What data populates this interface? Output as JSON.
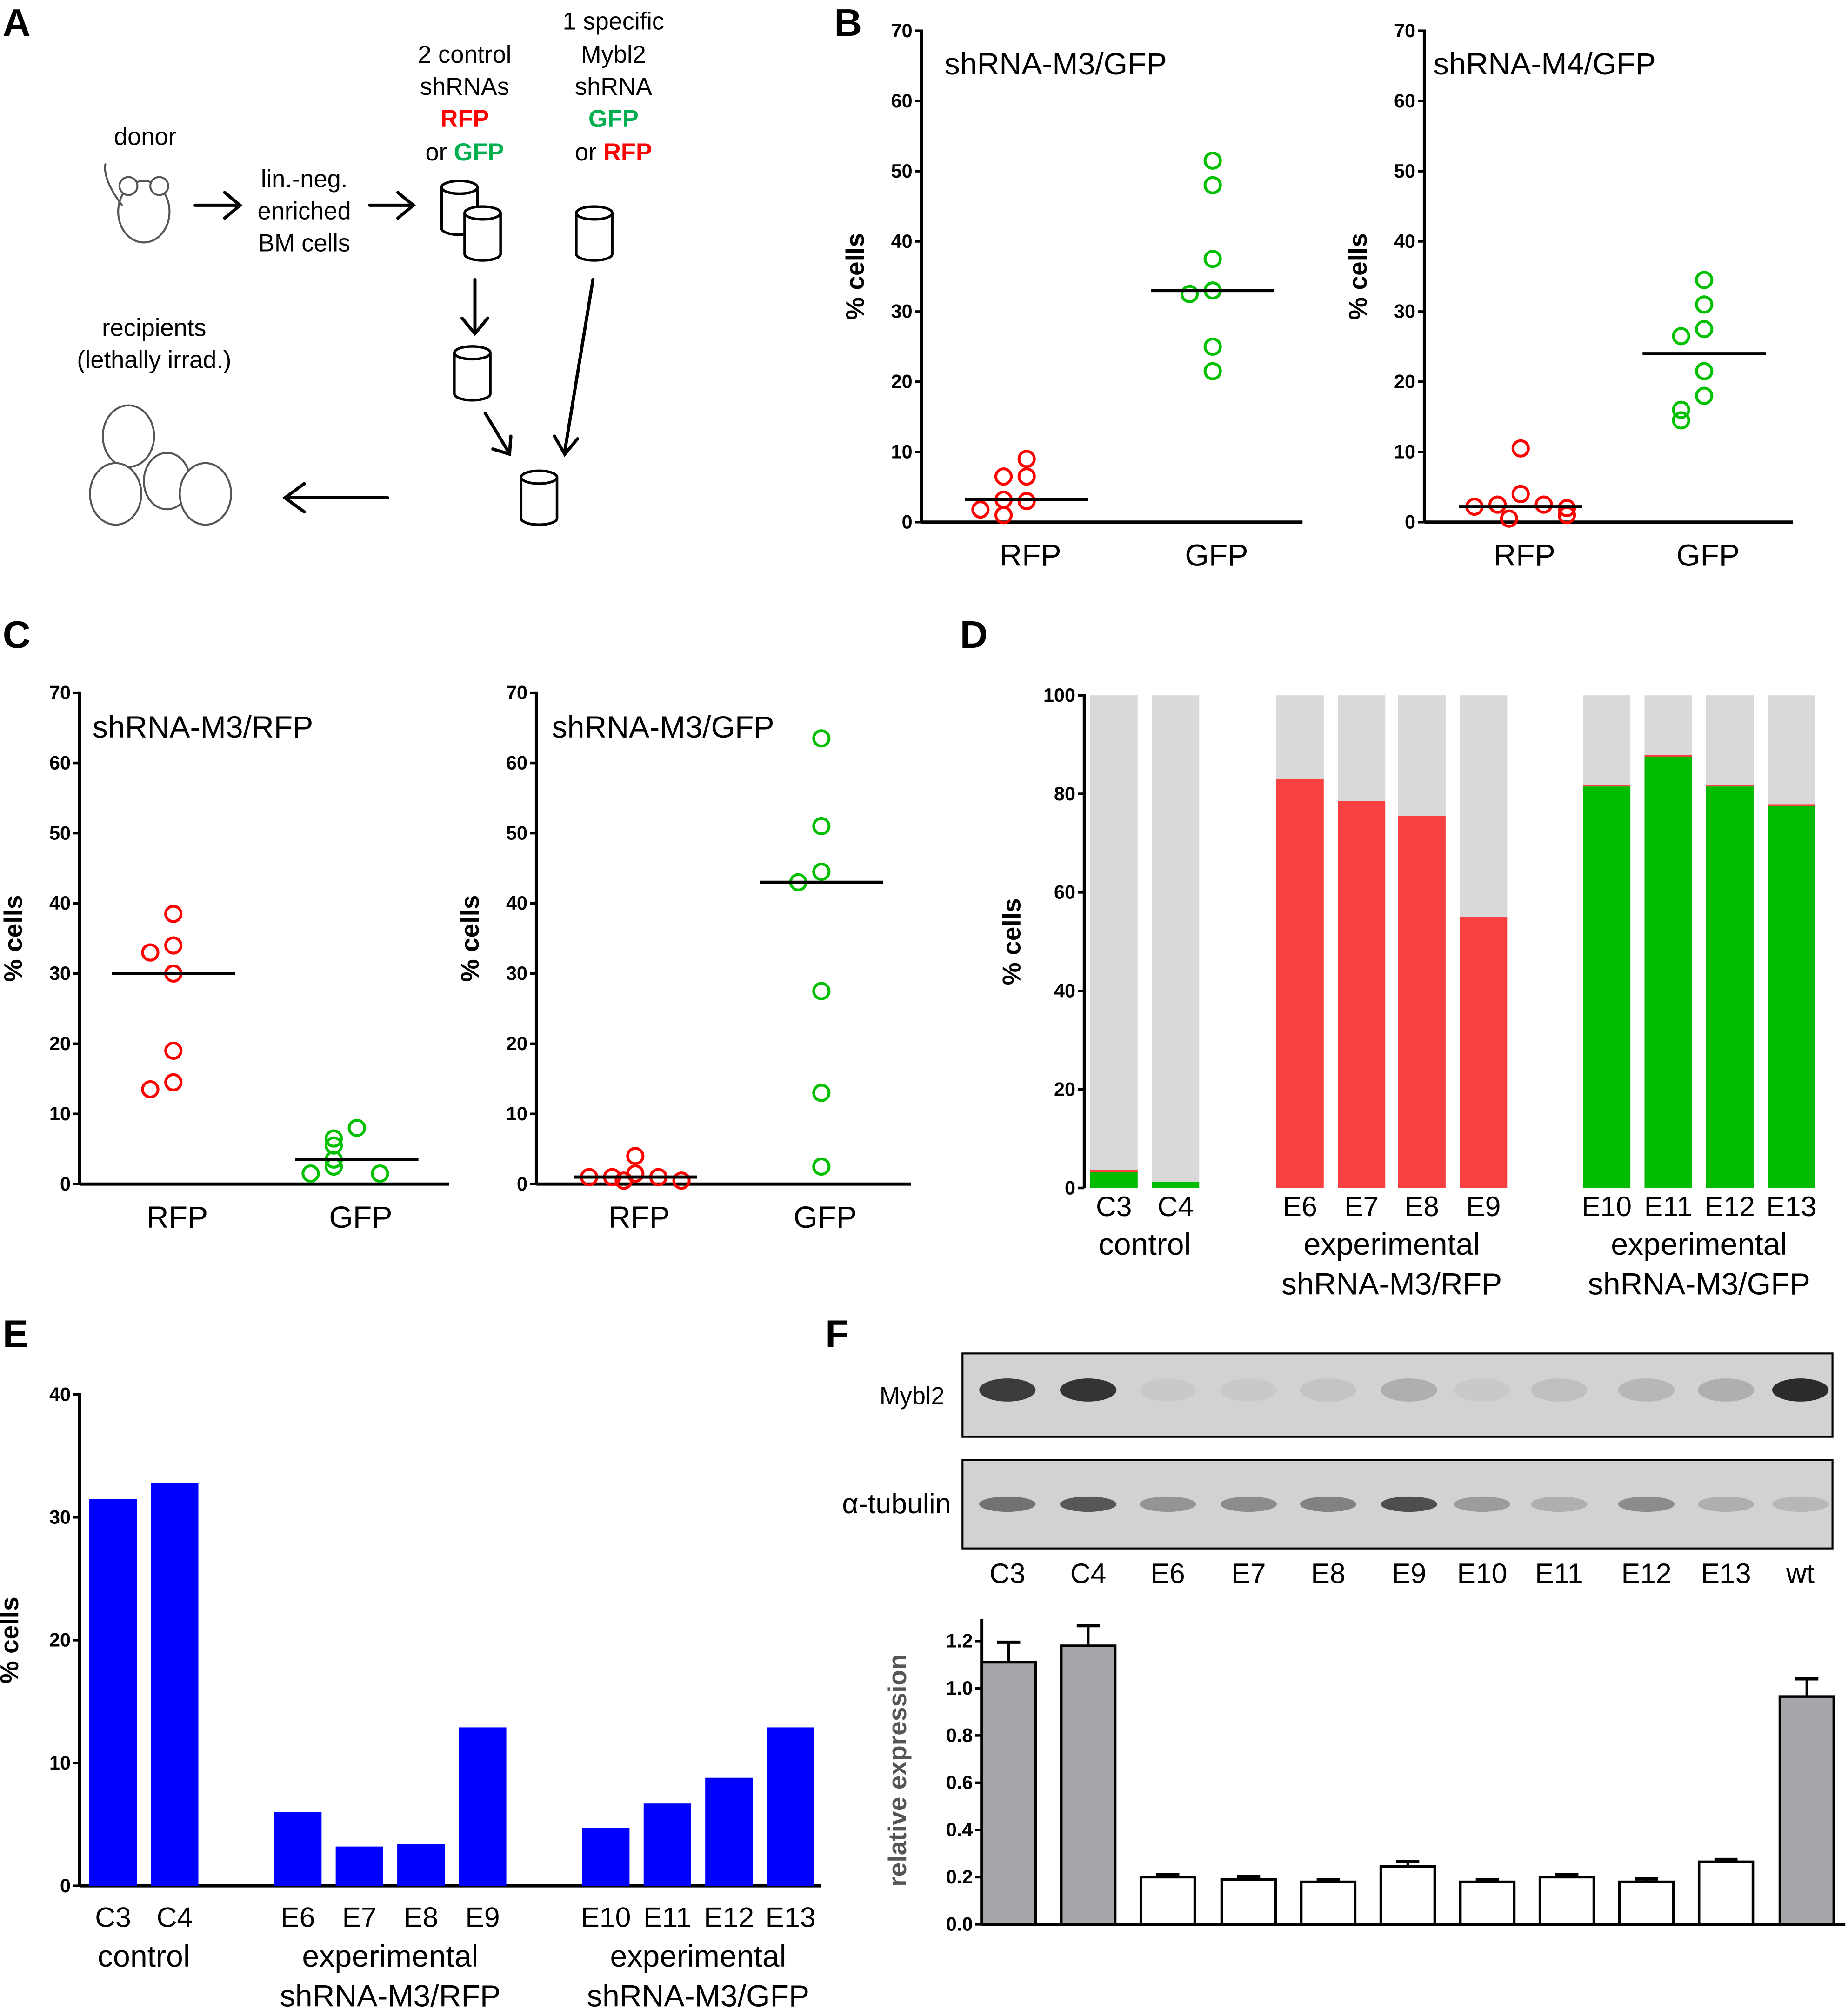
{
  "panel_letters": [
    "A",
    "B",
    "C",
    "D",
    "E",
    "F"
  ],
  "diagram": {
    "donor": "donor",
    "enriched": [
      "lin.-neg.",
      "enriched",
      "BM cells"
    ],
    "control": [
      "2 control",
      "shRNAs",
      "RFP",
      "or ",
      "GFP"
    ],
    "specific": [
      "1 specific",
      "Mybl2",
      "shRNA",
      "GFP",
      "or ",
      "RFP"
    ],
    "recipients": [
      "recipients",
      "(lethally irrad.)"
    ],
    "colors": {
      "red": "#ff0000",
      "green": "#00b050"
    }
  },
  "chart_data": [
    {
      "id": "B1",
      "type": "scatter",
      "title": "shRNA-M3/GFP",
      "ylabel": "% cells",
      "ylim": [
        0,
        70
      ],
      "yticks": [
        0,
        10,
        20,
        30,
        40,
        50,
        60,
        70
      ],
      "categories": [
        "RFP",
        "GFP"
      ],
      "series": [
        {
          "name": "RFP",
          "color": "#ff0000",
          "values": [
            9,
            6.5,
            6.5,
            3,
            3.2,
            1,
            1.8
          ],
          "median": 3.2
        },
        {
          "name": "GFP",
          "color": "#00c000",
          "values": [
            51.5,
            48,
            37.5,
            33,
            32.5,
            25,
            21.5
          ],
          "median": 33
        }
      ]
    },
    {
      "id": "B2",
      "type": "scatter",
      "title": "shRNA-M4/GFP",
      "ylabel": "% cells",
      "ylim": [
        0,
        70
      ],
      "yticks": [
        0,
        10,
        20,
        30,
        40,
        50,
        60,
        70
      ],
      "categories": [
        "RFP",
        "GFP"
      ],
      "series": [
        {
          "name": "RFP",
          "color": "#ff0000",
          "values": [
            10.5,
            4,
            2.5,
            2.5,
            2.2,
            2,
            1,
            0.5
          ],
          "median": 2.2
        },
        {
          "name": "GFP",
          "color": "#00c000",
          "values": [
            34.5,
            31,
            27.5,
            26.5,
            21.5,
            18,
            16,
            14.5
          ],
          "median": 24
        }
      ]
    },
    {
      "id": "C1",
      "type": "scatter",
      "title": "shRNA-M3/RFP",
      "ylabel": "% cells",
      "ylim": [
        0,
        70
      ],
      "yticks": [
        0,
        10,
        20,
        30,
        40,
        50,
        60,
        70
      ],
      "categories": [
        "RFP",
        "GFP"
      ],
      "series": [
        {
          "name": "RFP",
          "color": "#ff0000",
          "values": [
            38.5,
            34,
            33,
            30,
            19,
            14.5,
            13.5
          ],
          "median": 30
        },
        {
          "name": "GFP",
          "color": "#00c000",
          "values": [
            8,
            6.5,
            5.5,
            3.5,
            2.5,
            1.5,
            1.5
          ],
          "median": 3.5
        }
      ]
    },
    {
      "id": "C2",
      "type": "scatter",
      "title": "shRNA-M3/GFP",
      "ylabel": "% cells",
      "ylim": [
        0,
        70
      ],
      "yticks": [
        0,
        10,
        20,
        30,
        40,
        50,
        60,
        70
      ],
      "categories": [
        "RFP",
        "GFP"
      ],
      "series": [
        {
          "name": "RFP",
          "color": "#ff0000",
          "values": [
            4,
            1.5,
            1,
            1,
            1,
            0.5,
            0.5
          ],
          "median": 1
        },
        {
          "name": "GFP",
          "color": "#00c000",
          "values": [
            63.5,
            51,
            44.5,
            43,
            27.5,
            13,
            2.5
          ],
          "median": 43
        }
      ]
    },
    {
      "id": "D",
      "type": "bar",
      "stacked": true,
      "ylabel": "% cells",
      "ylim": [
        0,
        100
      ],
      "yticks": [
        0,
        20,
        40,
        60,
        80,
        100
      ],
      "categories": [
        "C3",
        "C4",
        "E6",
        "E7",
        "E8",
        "E9",
        "E10",
        "E11",
        "E12",
        "E13"
      ],
      "groups": [
        {
          "label": [
            "control"
          ],
          "members": [
            "C3",
            "C4"
          ]
        },
        {
          "label": [
            "experimental",
            "shRNA-M3/RFP"
          ],
          "members": [
            "E6",
            "E7",
            "E8",
            "E9"
          ]
        },
        {
          "label": [
            "experimental",
            "shRNA-M3/GFP"
          ],
          "members": [
            "E10",
            "E11",
            "E12",
            "E13"
          ]
        }
      ],
      "series": [
        {
          "color": "#00bb00",
          "values": [
            3.2,
            1.2,
            0,
            0,
            0,
            0,
            81.5,
            87.5,
            81.5,
            77.5
          ]
        },
        {
          "color": "#f94040",
          "values": [
            0.5,
            0,
            83,
            78.5,
            75.5,
            55,
            0.4,
            0.4,
            0.4,
            0.4
          ]
        },
        {
          "color": "#d9d9d9",
          "values": [
            96.3,
            98.8,
            17,
            21.5,
            24.5,
            45,
            18.1,
            12.1,
            18.1,
            22.1
          ]
        }
      ]
    },
    {
      "id": "E",
      "type": "bar",
      "ylabel": "% cells",
      "ylim": [
        0,
        40
      ],
      "yticks": [
        0,
        10,
        20,
        30,
        40
      ],
      "color": "#0000ff",
      "categories": [
        "C3",
        "C4",
        "E6",
        "E7",
        "E8",
        "E9",
        "E10",
        "E11",
        "E12",
        "E13"
      ],
      "values": [
        31.5,
        32.8,
        6,
        3.2,
        3.4,
        12.9,
        4.7,
        6.7,
        8.8,
        12.9
      ],
      "groups": [
        {
          "label": [
            "control"
          ],
          "members": [
            "C3",
            "C4"
          ]
        },
        {
          "label": [
            "experimental",
            "shRNA-M3/RFP"
          ],
          "members": [
            "E6",
            "E7",
            "E8",
            "E9"
          ]
        },
        {
          "label": [
            "experimental",
            "shRNA-M3/GFP"
          ],
          "members": [
            "E10",
            "E11",
            "E12",
            "E13"
          ]
        }
      ]
    },
    {
      "id": "F",
      "type": "bar",
      "ylabel": "relative expression",
      "ylim": [
        0,
        1.25
      ],
      "yticks": [
        "0.0",
        "0.2",
        "0.4",
        "0.6",
        "0.8",
        "1.0",
        "1.2"
      ],
      "categories": [
        "C3",
        "C4",
        "E6",
        "E7",
        "E8",
        "E9",
        "E10",
        "E11",
        "E12",
        "E13",
        "wt"
      ],
      "values": [
        1.11,
        1.18,
        0.2,
        0.19,
        0.18,
        0.245,
        0.18,
        0.2,
        0.18,
        0.265,
        0.965
      ],
      "errors": [
        0.085,
        0.085,
        0.01,
        0.012,
        0.01,
        0.02,
        0.01,
        0.01,
        0.012,
        0.01,
        0.075
      ],
      "fill": [
        "#a6a6ab",
        "#a6a6ab",
        "#ffffff",
        "#ffffff",
        "#ffffff",
        "#ffffff",
        "#ffffff",
        "#ffffff",
        "#ffffff",
        "#ffffff",
        "#a6a6ab"
      ],
      "blot": {
        "rows": [
          "Mybl2",
          "α-tubulin"
        ],
        "intensity": [
          [
            0.85,
            0.9,
            0.05,
            0.05,
            0.08,
            0.2,
            0.05,
            0.1,
            0.15,
            0.2,
            0.95
          ],
          [
            0.55,
            0.7,
            0.35,
            0.4,
            0.45,
            0.75,
            0.3,
            0.2,
            0.4,
            0.2,
            0.15
          ]
        ]
      }
    }
  ]
}
